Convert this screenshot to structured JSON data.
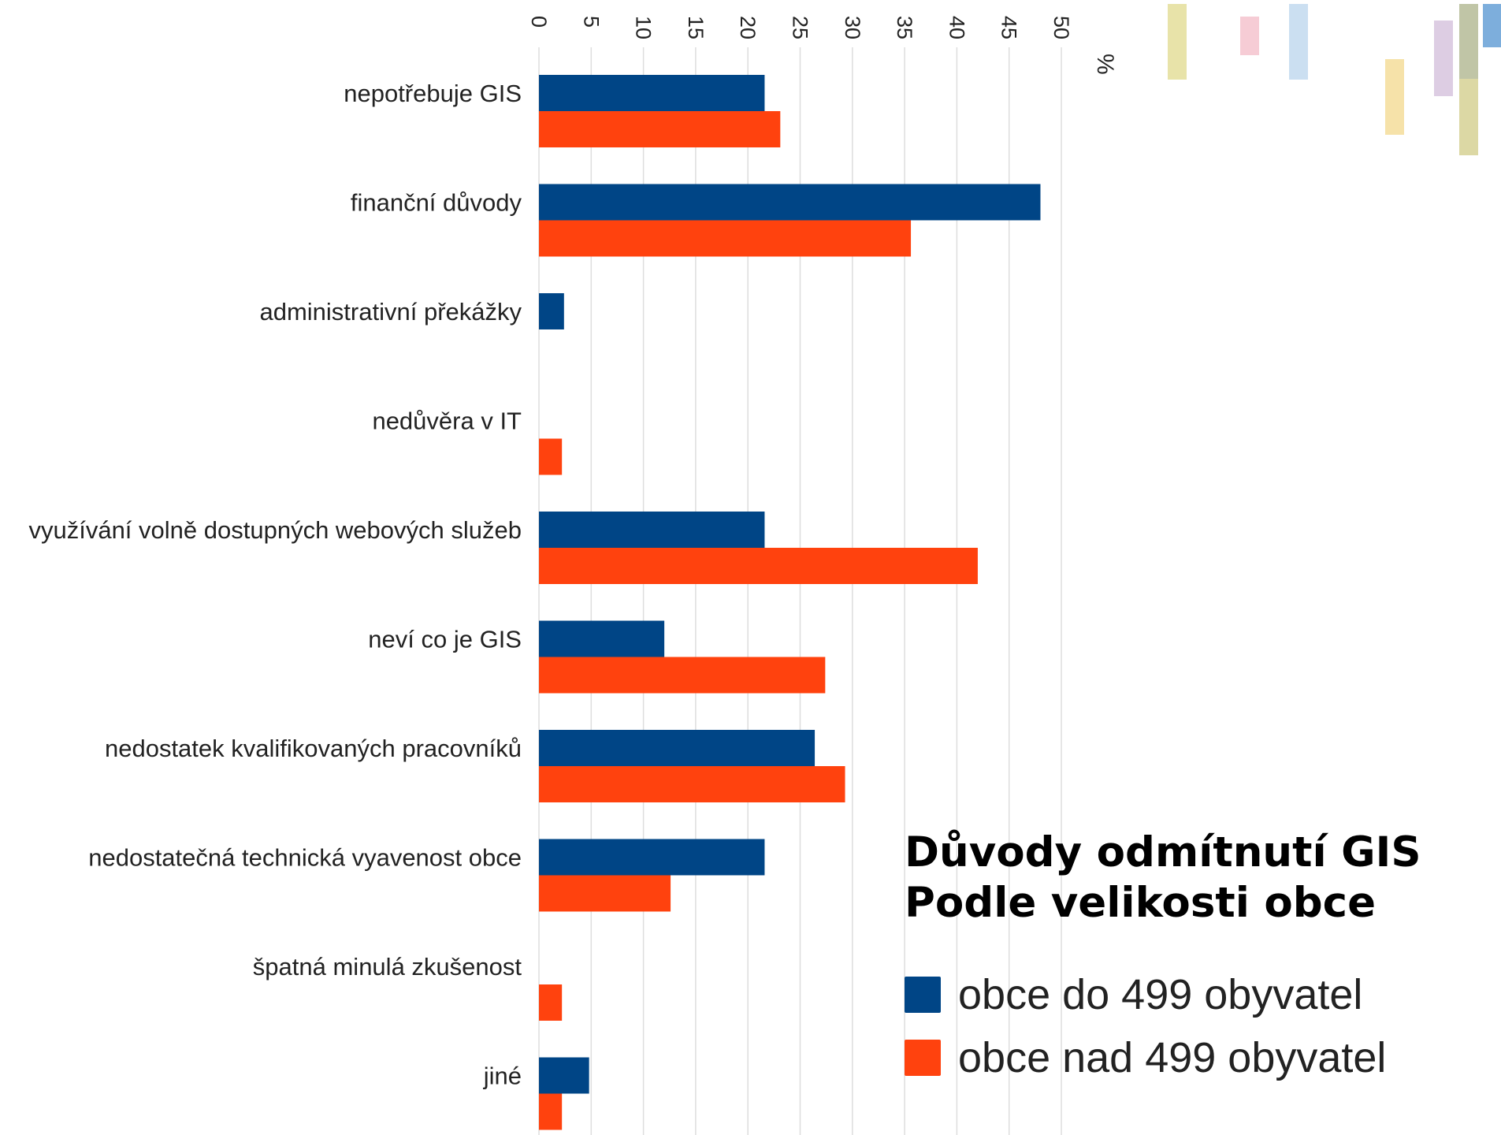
{
  "chart_data": {
    "type": "bar",
    "orientation": "horizontal",
    "title": "Důvody odmítnutí GIS",
    "subtitle": "Podle velikosti obce",
    "categories": [
      "nepotřebuje GIS",
      "finanční důvody",
      "administrativní překážky",
      "nedůvěra v IT",
      "využívání volně dostupných webových služeb",
      "neví co je GIS",
      "nedostatek kvalifikovaných pracovníků",
      "nedostatečná technická vyavenost obce",
      "špatná minulá zkušenost",
      "jiné"
    ],
    "series": [
      {
        "name": "obce do 499 obyvatel",
        "color": "#004586",
        "values": [
          21.6,
          48,
          2.4,
          0,
          21.6,
          12,
          26.4,
          21.6,
          0,
          4.8
        ]
      },
      {
        "name": "obce nad 499 obyvatel",
        "color": "#FF420E",
        "values": [
          23.1,
          35.6,
          0,
          2.2,
          42,
          27.4,
          29.3,
          12.6,
          2.2,
          2.2
        ]
      }
    ],
    "x_ticks": [
      "0",
      "5",
      "10",
      "15",
      "20",
      "25",
      "30",
      "35",
      "40",
      "45",
      "50"
    ],
    "xlim": [
      0,
      50
    ],
    "xlabel": "%",
    "ylabel": "",
    "grid": true,
    "legend_position": "bottom-right"
  },
  "decorations": {
    "bar_colors": [
      "#E5E0A0",
      "#F5C6D0",
      "#C5DCEF",
      "#F5DFA0",
      "#D9C8E0",
      "#D8D49A",
      "#6FA5D8"
    ]
  }
}
